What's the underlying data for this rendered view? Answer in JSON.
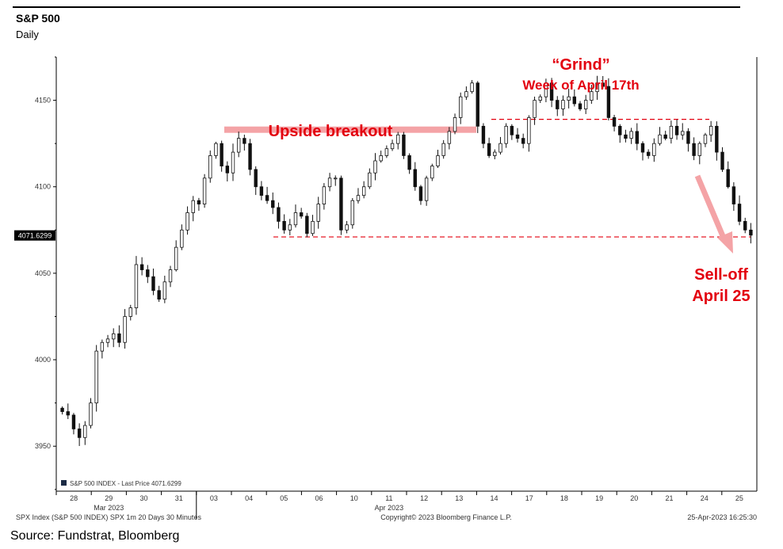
{
  "header": {
    "title": "S&P 500",
    "subtitle": "Daily"
  },
  "source": "Source: Fundstrat, Bloomberg",
  "footer": {
    "left": "SPX Index (S&P 500 INDEX) SPX 1m 20 Days 30 Minutes",
    "center": "Copyright© 2023 Bloomberg Finance L.P.",
    "right": "25-Apr-2023 16:25:30"
  },
  "colors": {
    "annotation_red": "#e3000f",
    "band_pink": "#f4a3a6",
    "candle": "#111111",
    "grid_axis": "#000000"
  },
  "chart_data": {
    "type": "candlestick",
    "ylim": [
      3924,
      4175
    ],
    "yticks": [
      3950,
      4000,
      4050,
      4100,
      4150
    ],
    "xticks": [
      "28",
      "29",
      "30",
      "31",
      "03",
      "04",
      "05",
      "06",
      "10",
      "11",
      "12",
      "13",
      "14",
      "17",
      "18",
      "19",
      "20",
      "21",
      "24",
      "25"
    ],
    "month_labels": [
      {
        "label": "Mar 2023",
        "after_tick": "29"
      },
      {
        "label": "Apr 2023",
        "after_tick": "11"
      }
    ],
    "legend": {
      "label": "S&P 500 INDEX - Last Price",
      "value": "4071.6299",
      "placement": "bottom-left"
    },
    "last_price_label": "4071.6299",
    "series": [
      {
        "name": "S&P 500 INDEX",
        "values": [
          3970,
          3968,
          3960,
          3955,
          3962,
          3975,
          4005,
          4010,
          4012,
          4015,
          4010,
          4025,
          4030,
          4055,
          4052,
          4048,
          4040,
          4035,
          4045,
          4052,
          4065,
          4075,
          4085,
          4092,
          4090,
          4105,
          4118,
          4125,
          4112,
          4108,
          4120,
          4128,
          4125,
          4110,
          4100,
          4095,
          4092,
          4088,
          4080,
          4075,
          4078,
          4085,
          4083,
          4073,
          4080,
          4090,
          4100,
          4105,
          4105,
          4075,
          4078,
          4092,
          4095,
          4100,
          4108,
          4115,
          4118,
          4122,
          4125,
          4130,
          4118,
          4110,
          4100,
          4092,
          4105,
          4112,
          4118,
          4125,
          4132,
          4140,
          4152,
          4155,
          4160,
          4135,
          4125,
          4118,
          4120,
          4125,
          4135,
          4130,
          4128,
          4125,
          4140,
          4150,
          4152,
          4160,
          4150,
          4145,
          4150,
          4152,
          4148,
          4145,
          4150,
          4155,
          4160,
          4158,
          4140,
          4135,
          4130,
          4128,
          4132,
          4125,
          4120,
          4118,
          4125,
          4130,
          4128,
          4135,
          4130,
          4132,
          4125,
          4118,
          4125,
          4130,
          4135,
          4120,
          4110,
          4100,
          4090,
          4080,
          4075,
          4072
        ]
      }
    ],
    "annotations": [
      {
        "label": "Upside breakout",
        "color": "#e3000f"
      },
      {
        "label": "“Grind”",
        "color": "#e3000f"
      },
      {
        "label": "Week of April 17th",
        "color": "#e3000f"
      },
      {
        "label": "Sell-off",
        "color": "#e3000f"
      },
      {
        "label": "April 25",
        "color": "#e3000f"
      }
    ],
    "reference_lines": [
      {
        "kind": "dashed",
        "y": 4071,
        "color": "#e3000f"
      },
      {
        "kind": "dashed",
        "y": 4139,
        "color": "#e3000f"
      },
      {
        "kind": "band",
        "y": 4133,
        "color": "#f4a3a6"
      }
    ]
  }
}
